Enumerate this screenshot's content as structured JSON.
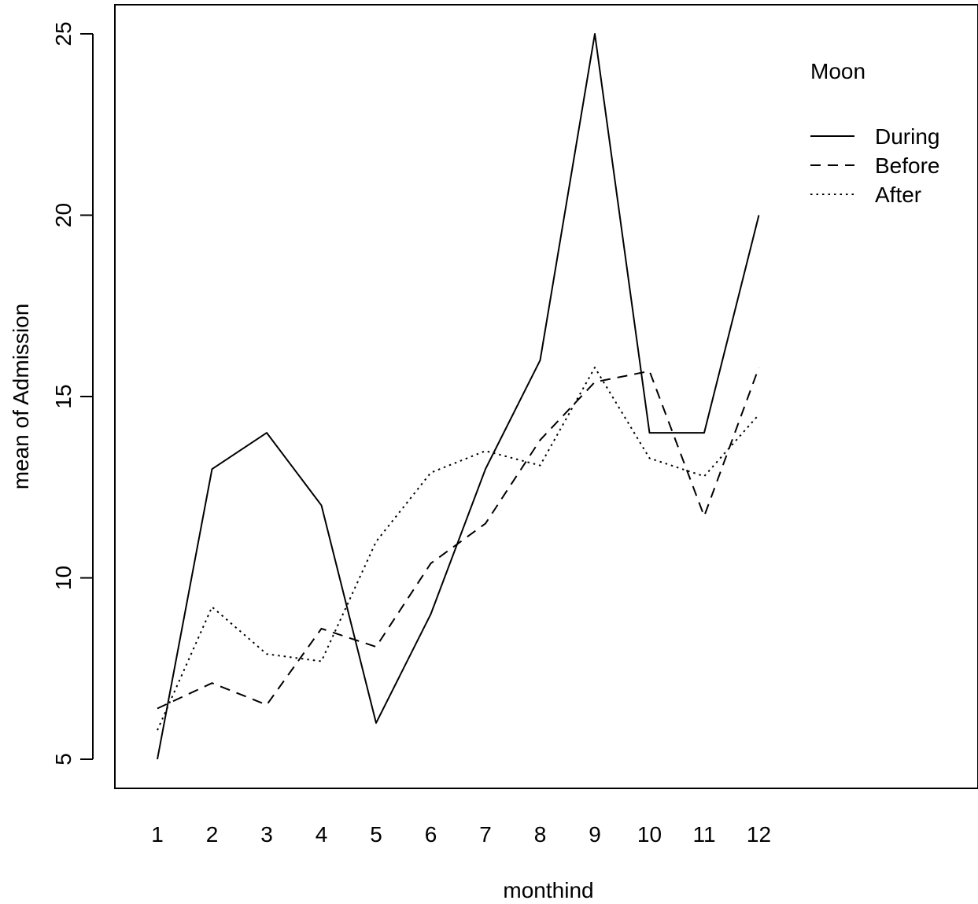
{
  "chart_data": {
    "type": "line",
    "xlabel": "monthind",
    "ylabel": "mean of  Admission",
    "categories": [
      "1",
      "2",
      "3",
      "4",
      "5",
      "6",
      "7",
      "8",
      "9",
      "10",
      "11",
      "12"
    ],
    "yticks": [
      5,
      10,
      15,
      20,
      25
    ],
    "ylim": [
      4.3,
      25.7
    ],
    "grid": false,
    "legend": {
      "title": "Moon",
      "position": "top-right"
    },
    "series": [
      {
        "name": "During",
        "line_style": "solid",
        "values": [
          5,
          13,
          14,
          12,
          6,
          9,
          13,
          16,
          25,
          14,
          14,
          20
        ]
      },
      {
        "name": "Before",
        "line_style": "dashed",
        "values": [
          6.4,
          7.1,
          6.5,
          8.6,
          8.1,
          10.4,
          11.5,
          13.8,
          15.4,
          15.7,
          11.7,
          15.8
        ]
      },
      {
        "name": "After",
        "line_style": "dotted",
        "values": [
          5.8,
          9.2,
          7.9,
          7.7,
          11.0,
          12.9,
          13.5,
          13.1,
          15.8,
          13.3,
          12.8,
          14.5
        ]
      }
    ],
    "colors": {
      "line": "#000000",
      "axis": "#000000",
      "background": "#ffffff"
    }
  }
}
